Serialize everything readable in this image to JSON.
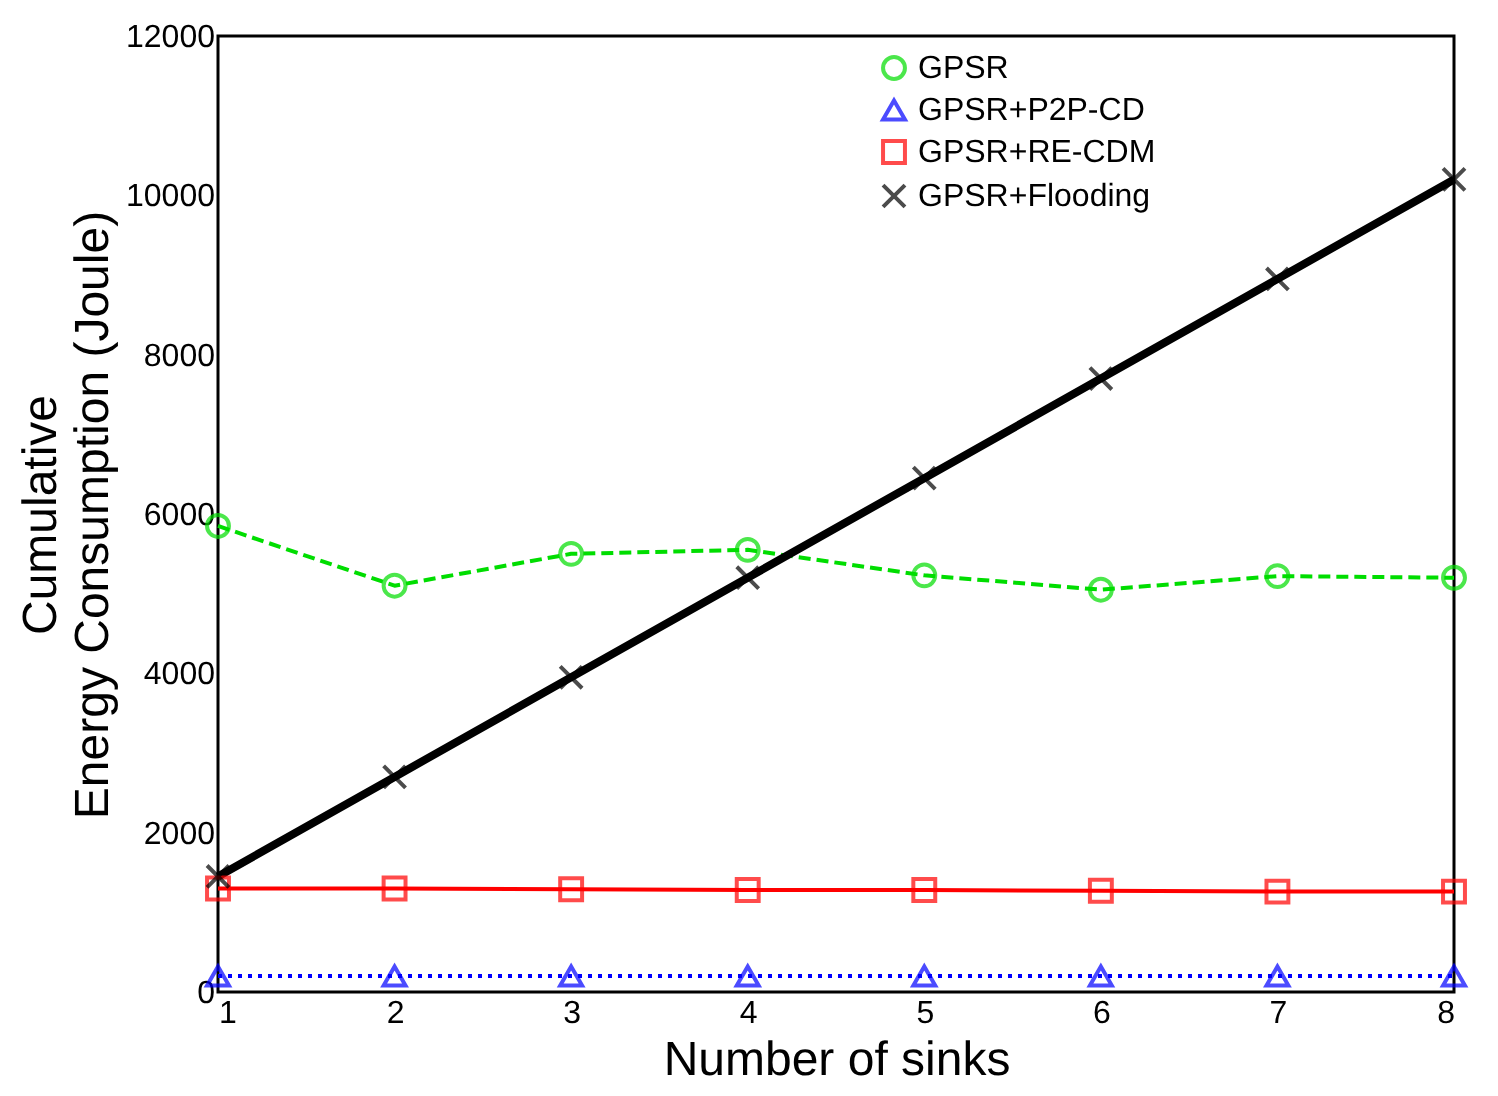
{
  "chart_data": {
    "type": "line",
    "xlabel": "Number of sinks",
    "ylabel": "Cumulative\nEnergy Consumption (Joule)",
    "x": [
      1,
      2,
      3,
      4,
      5,
      6,
      7,
      8
    ],
    "xlim": [
      1,
      8
    ],
    "xticks": [
      1,
      2,
      3,
      4,
      5,
      6,
      7,
      8
    ],
    "ylim": [
      0,
      12000
    ],
    "yticks": [
      0,
      2000,
      4000,
      6000,
      8000,
      10000,
      12000
    ],
    "grid": false,
    "legend": "top right",
    "series": [
      {
        "name": "GPSR",
        "color": "#00dd00",
        "marker": "circle",
        "line_style": "dashed",
        "values": [
          5850,
          5100,
          5500,
          5550,
          5230,
          5050,
          5220,
          5200
        ]
      },
      {
        "name": "GPSR+P2P-CD",
        "color": "#0000ff",
        "marker": "triangle",
        "line_style": "dotted",
        "values": [
          200,
          200,
          200,
          200,
          200,
          200,
          200,
          200
        ]
      },
      {
        "name": "GPSR+RE-CDM",
        "color": "#ff0000",
        "marker": "square",
        "line_style": "solid",
        "values": [
          1300,
          1300,
          1290,
          1280,
          1280,
          1270,
          1260,
          1260
        ]
      },
      {
        "name": "GPSR+Flooding",
        "color": "#000000",
        "marker": "cross",
        "line_style": "solid",
        "values": [
          1450,
          2700,
          3950,
          5200,
          6450,
          7700,
          8950,
          10200
        ]
      }
    ]
  }
}
